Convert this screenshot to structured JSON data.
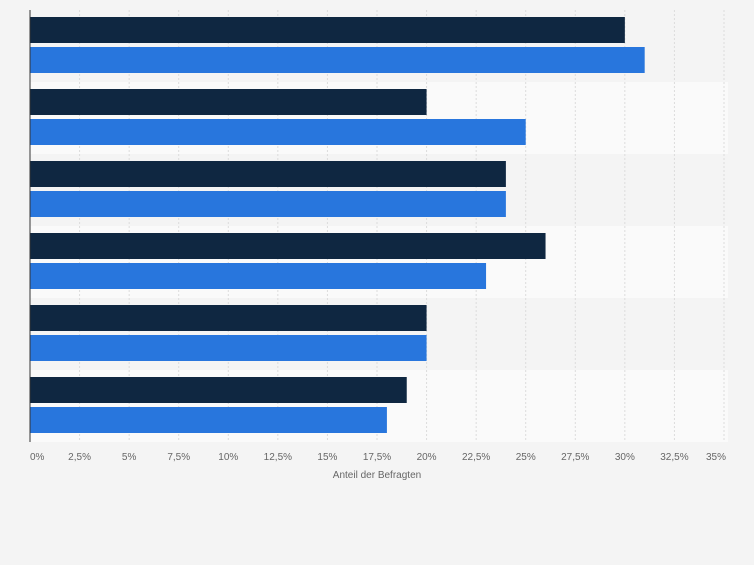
{
  "chart_data": {
    "type": "bar",
    "orientation": "horizontal",
    "categories": [
      "",
      "",
      "",
      "",
      "",
      ""
    ],
    "series": [
      {
        "values": [
          30,
          20,
          24,
          26,
          20,
          19
        ]
      },
      {
        "values": [
          31,
          25,
          24,
          23,
          20,
          18
        ]
      }
    ],
    "title": "",
    "xlabel": "Anteil der Befragten",
    "ylabel": "",
    "xlim": [
      0,
      35
    ],
    "x_ticks": [
      0,
      2.5,
      5,
      7.5,
      10,
      12.5,
      15,
      17.5,
      20,
      22.5,
      25,
      27.5,
      30,
      32.5,
      35
    ],
    "x_tick_labels": [
      "0%",
      "2,5%",
      "5%",
      "7,5%",
      "10%",
      "12,5%",
      "15%",
      "17,5%",
      "20%",
      "22,5%",
      "25%",
      "27,5%",
      "30%",
      "32,5%",
      "35%"
    ],
    "grid": true,
    "legend": "none",
    "colors": {
      "series_1": "#0f2741",
      "series_2": "#2876dd",
      "background": "#f4f4f4",
      "band_light": "#fafafa",
      "band_dark": "#f4f4f4",
      "grid": "#dcdcdc",
      "axis": "#333333",
      "tick_text": "#666666"
    }
  }
}
